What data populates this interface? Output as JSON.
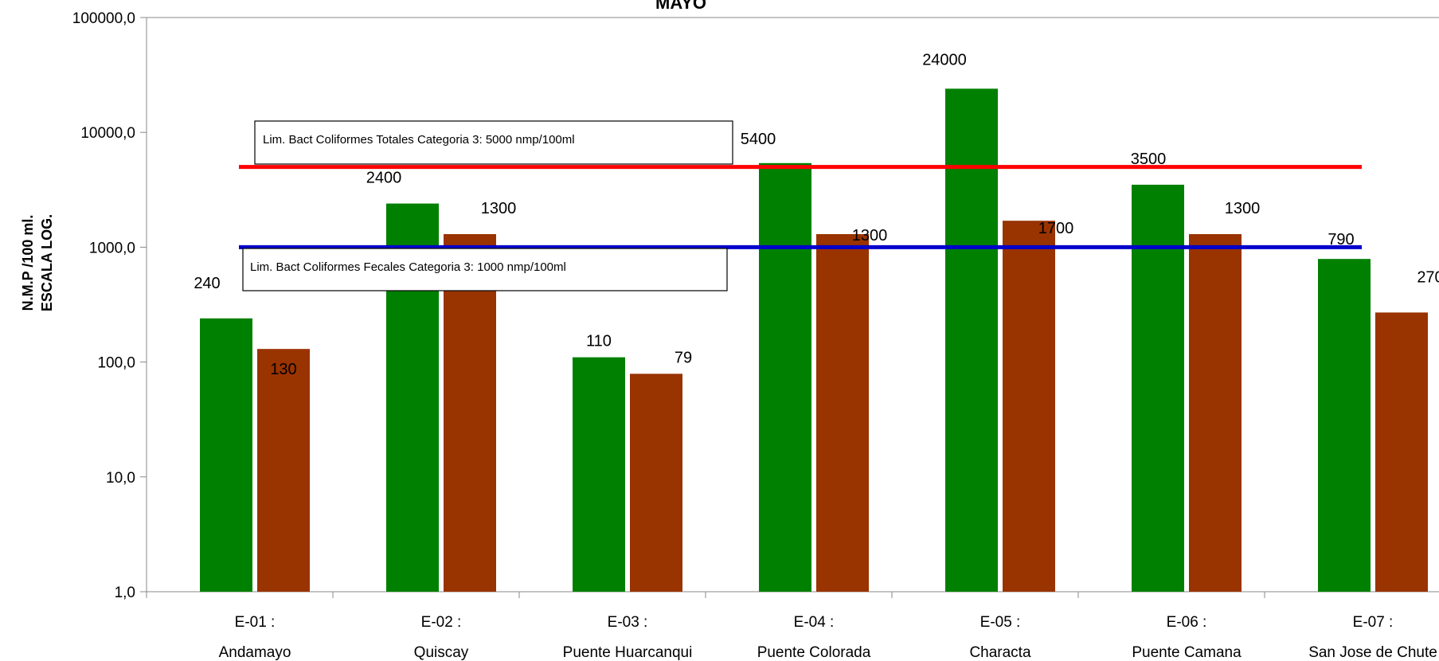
{
  "chart_data": {
    "type": "bar",
    "title": "MAYO",
    "ylabel_line1": "N.M.P /100 ml.",
    "ylabel_line2": "ESCALA LOG.",
    "yscale": "log",
    "ylim": [
      1,
      100000
    ],
    "yticks": [
      {
        "value": 1,
        "label": "1,0"
      },
      {
        "value": 10,
        "label": "10,0"
      },
      {
        "value": 100,
        "label": "100,0"
      },
      {
        "value": 1000,
        "label": "1000,0"
      },
      {
        "value": 10000,
        "label": "10000,0"
      },
      {
        "value": 100000,
        "label": "100000,0"
      }
    ],
    "categories": [
      [
        "E-01 :",
        "Andamayo"
      ],
      [
        "E-02 :",
        "Quiscay"
      ],
      [
        "E-03 :",
        "Puente Huarcanqui"
      ],
      [
        "E-04 :",
        "Puente Colorada"
      ],
      [
        "E-05 :",
        "Characta"
      ],
      [
        "E-06 :",
        "Puente Camana"
      ],
      [
        "E-07 :",
        "San Jose de Chute"
      ]
    ],
    "series": [
      {
        "color": "#008000",
        "values": [
          240,
          2400,
          110,
          5400,
          24000,
          3500,
          790
        ]
      },
      {
        "color": "#993300",
        "values": [
          130,
          1300,
          79,
          1300,
          1700,
          1300,
          270
        ]
      }
    ],
    "reference_lines": [
      {
        "value": 5000,
        "color": "#ff0000",
        "label": "Lim. Bact Coliformes Totales Categoria 3: 5000 nmp/100ml"
      },
      {
        "value": 1000,
        "color": "#0000cc",
        "label": "Lim. Bact Coliformes Fecales Categoria 3: 1000  nmp/100ml"
      }
    ],
    "grid": false,
    "legend": "none"
  }
}
